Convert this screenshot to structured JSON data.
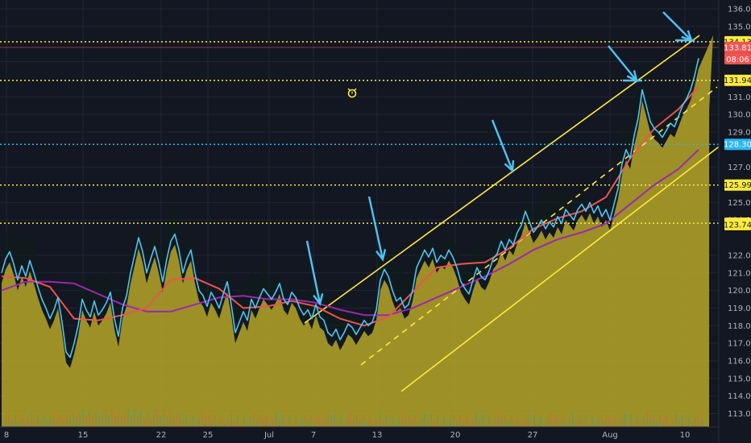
{
  "chart_data": {
    "type": "line",
    "title": "",
    "xlabel": "",
    "ylabel": "",
    "ylim": [
      113,
      136.5
    ],
    "x_ticks": [
      "8",
      "15",
      "22",
      "25",
      "Jul",
      "7",
      "13",
      "20",
      "27",
      "Aug",
      "10"
    ],
    "y_ticks": [
      113,
      114,
      115,
      116,
      117,
      118,
      119,
      120,
      121,
      122,
      124,
      125,
      127,
      129,
      130,
      131,
      133,
      135,
      136
    ],
    "horizontal_levels": [
      {
        "value": 134.13,
        "label": "134.13",
        "color": "#ffeb3b"
      },
      {
        "value": 131.94,
        "label": "131.94",
        "color": "#ffeb3b"
      },
      {
        "value": 128.3,
        "label": "128.30",
        "color": "#29b6f6"
      },
      {
        "value": 125.99,
        "label": "125.99",
        "color": "#ffeb3b"
      },
      {
        "value": 123.82,
        "label": "123.82",
        "color": "#ffeb3b"
      }
    ],
    "price_tags": [
      {
        "value": 133.81,
        "label": "133.81",
        "color": "#ef5350"
      },
      {
        "value": 123.74,
        "label": "123.74",
        "color": "#ffeb3b"
      }
    ],
    "countdown": "08:06",
    "series": [
      {
        "color": "#4fc3f7",
        "x": [
          0,
          5,
          10,
          15,
          20,
          25,
          30,
          35,
          40,
          45,
          50,
          55,
          60,
          65,
          70,
          75,
          80,
          85,
          90,
          95,
          100,
          105,
          110,
          115,
          120,
          125,
          130,
          135,
          140,
          145,
          150,
          155,
          160,
          165,
          170,
          175,
          180,
          185,
          190,
          195,
          200,
          205,
          210,
          215,
          220,
          225,
          230,
          235,
          240,
          245,
          250,
          255,
          260,
          265,
          270,
          275,
          280,
          285,
          290,
          295,
          300,
          305,
          310,
          315,
          320,
          325,
          330,
          335,
          340,
          345,
          350,
          355,
          360,
          365,
          370,
          375,
          380,
          385,
          390,
          395,
          400,
          405,
          410,
          415,
          420,
          425,
          430,
          435,
          440,
          445,
          450,
          455,
          460,
          465,
          470,
          475,
          480,
          485,
          490,
          495,
          500,
          505,
          510,
          515,
          520,
          525,
          530,
          535,
          540,
          545,
          550,
          555,
          560,
          565,
          570,
          575,
          580,
          585,
          590,
          595,
          600,
          605,
          610,
          615,
          620,
          625,
          630,
          635,
          640,
          645,
          650,
          655,
          660,
          665,
          670,
          675,
          680,
          685,
          690,
          695,
          700,
          705,
          710,
          715,
          720,
          725,
          730,
          735,
          740,
          745,
          750,
          755,
          760,
          765,
          770,
          775,
          780,
          785,
          790,
          795,
          800,
          805,
          810,
          815,
          820,
          825,
          830,
          835,
          840,
          845,
          850,
          855,
          860,
          865
        ],
        "values": [
          121.0,
          121.8,
          122.2,
          121.5,
          120.6,
          121.4,
          120.8,
          121.7,
          121.0,
          120.2,
          119.5,
          119.0,
          118.4,
          118.9,
          119.6,
          118.2,
          116.5,
          116.2,
          117.0,
          118.0,
          119.5,
          118.9,
          118.5,
          119.4,
          118.6,
          118.9,
          119.3,
          119.9,
          118.4,
          117.4,
          119.0,
          119.7,
          121.0,
          122.0,
          123.0,
          122.2,
          121.0,
          121.8,
          122.5,
          121.6,
          120.5,
          121.8,
          122.8,
          123.2,
          122.3,
          121.0,
          121.8,
          122.3,
          121.0,
          120.0,
          119.7,
          119.1,
          119.9,
          119.5,
          119.0,
          119.8,
          120.5,
          119.2,
          117.6,
          118.2,
          118.8,
          118.3,
          119.5,
          119.0,
          119.6,
          120.1,
          119.8,
          119.5,
          119.9,
          120.4,
          119.5,
          119.2,
          119.9,
          119.6,
          119.0,
          118.6,
          118.9,
          118.4,
          119.2,
          118.5,
          118.3,
          117.6,
          117.4,
          117.8,
          117.2,
          117.6,
          118.1,
          117.9,
          117.5,
          117.9,
          118.3,
          118.0,
          118.2,
          118.9,
          120.6,
          121.2,
          120.8,
          120.0,
          119.4,
          119.6,
          119.0,
          119.2,
          120.0,
          121.3,
          121.8,
          122.3,
          121.9,
          122.4,
          121.6,
          122.0,
          121.8,
          122.3,
          121.9,
          121.3,
          120.5,
          120.1,
          119.8,
          120.6,
          121.3,
          120.8,
          120.6,
          121.1,
          121.8,
          122.1,
          122.8,
          122.3,
          122.9,
          122.6,
          123.3,
          123.7,
          124.5,
          123.9,
          123.3,
          123.6,
          124.0,
          123.5,
          123.9,
          123.6,
          124.2,
          123.8,
          124.6,
          124.3,
          124.0,
          124.6,
          124.9,
          124.5,
          125.0,
          124.4,
          124.8,
          124.2,
          124.6,
          124.0,
          124.9,
          125.8,
          127.2,
          128.0,
          127.5,
          128.8,
          129.8,
          131.4,
          130.5,
          129.6,
          129.2,
          129.0,
          128.7,
          129.1,
          129.5,
          129.3,
          129.9,
          130.5,
          130.9,
          131.4,
          132.2,
          133.2
        ]
      },
      {
        "color": "#ef5350",
        "x": [
          0,
          30,
          60,
          90,
          120,
          150,
          180,
          210,
          240,
          270,
          300,
          330,
          360,
          390,
          420,
          450,
          480,
          510,
          540,
          570,
          600,
          630,
          660,
          690,
          720,
          750,
          780,
          810,
          840,
          865
        ],
        "values": [
          120.8,
          120.7,
          120.2,
          118.4,
          118.3,
          118.6,
          119.0,
          120.6,
          120.7,
          120.1,
          119.0,
          119.1,
          119.4,
          119.1,
          118.4,
          118.0,
          118.5,
          119.9,
          121.3,
          121.5,
          121.6,
          122.4,
          123.5,
          124.1,
          124.5,
          125.3,
          127.5,
          129.2,
          130.3,
          131.6
        ]
      },
      {
        "color": "#9c27b0",
        "x": [
          0,
          30,
          60,
          90,
          120,
          150,
          180,
          210,
          240,
          270,
          300,
          330,
          360,
          390,
          420,
          450,
          480,
          510,
          540,
          570,
          600,
          630,
          660,
          690,
          720,
          750,
          780,
          810,
          840,
          865
        ],
        "values": [
          120.0,
          120.5,
          120.5,
          120.4,
          119.8,
          119.2,
          118.8,
          118.8,
          119.2,
          119.6,
          119.7,
          119.5,
          119.5,
          119.3,
          118.9,
          118.6,
          118.6,
          119.0,
          119.6,
          120.2,
          120.8,
          121.5,
          122.3,
          122.9,
          123.3,
          123.8,
          124.9,
          126.0,
          126.9,
          128.0
        ]
      }
    ]
  }
}
